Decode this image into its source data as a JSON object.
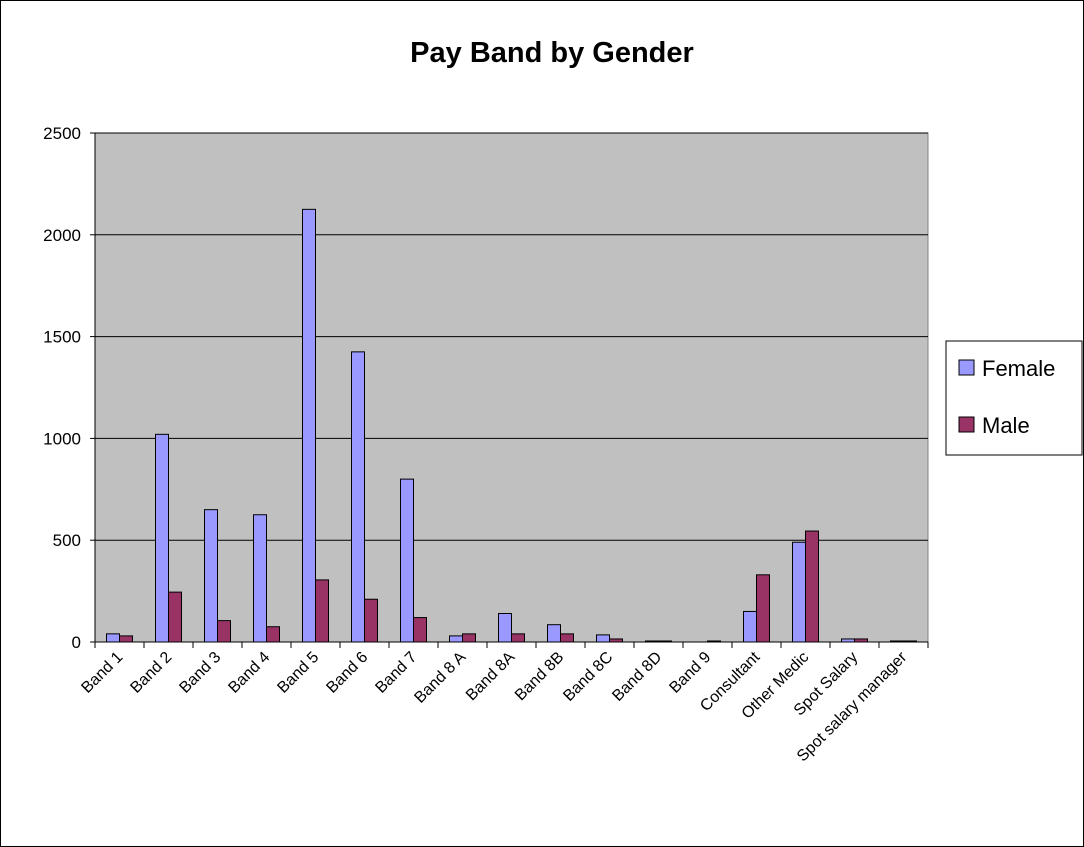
{
  "chart_data": {
    "type": "bar",
    "title": "Pay Band by Gender",
    "xlabel": "",
    "ylabel": "",
    "ylim": [
      0,
      2500
    ],
    "yticks": [
      0,
      500,
      1000,
      1500,
      2000,
      2500
    ],
    "categories": [
      "Band 1",
      "Band 2",
      "Band 3",
      "Band 4",
      "Band 5",
      "Band 6",
      "Band 7",
      "Band 8 A",
      "Band 8A",
      "Band 8B",
      "Band 8C",
      "Band 8D",
      "Band 9",
      "Consultant",
      "Other Medic",
      "Spot Salary",
      "Spot salary manager"
    ],
    "series": [
      {
        "name": "Female",
        "color": "#9999ff",
        "values": [
          40,
          1020,
          650,
          625,
          2125,
          1425,
          800,
          30,
          140,
          85,
          35,
          5,
          0,
          150,
          490,
          15,
          5
        ]
      },
      {
        "name": "Male",
        "color": "#993366",
        "values": [
          30,
          245,
          105,
          75,
          305,
          210,
          120,
          40,
          40,
          40,
          15,
          5,
          5,
          330,
          545,
          15,
          5
        ]
      }
    ],
    "grid": true,
    "legend": "right"
  }
}
